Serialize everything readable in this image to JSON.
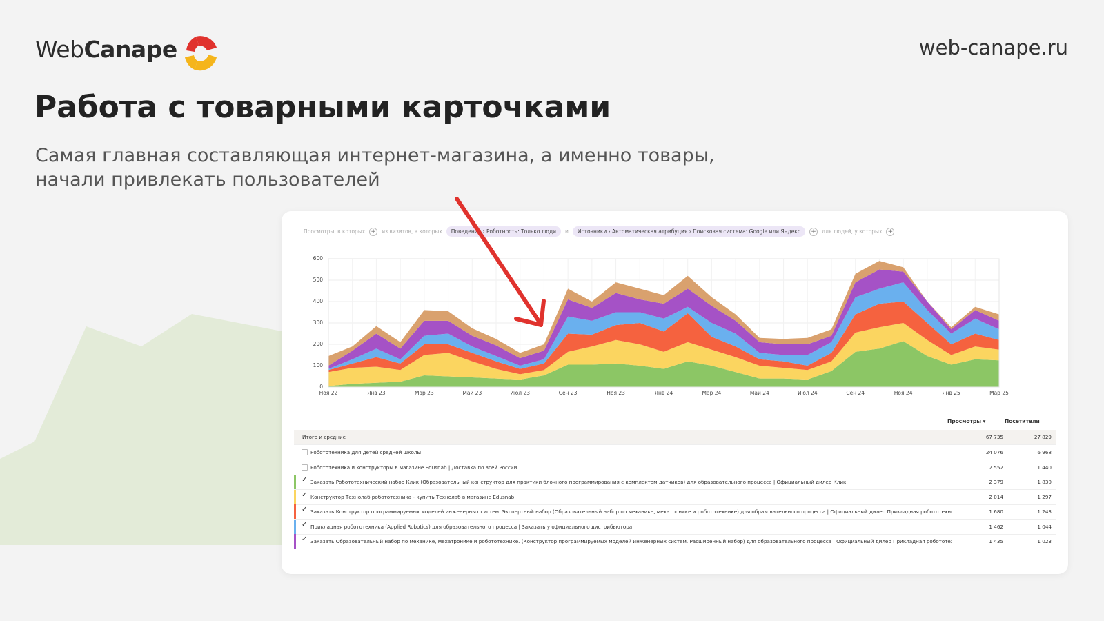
{
  "header": {
    "logo": {
      "light": "Web",
      "bold": "Canape"
    },
    "url": "web-canape.ru",
    "title": "Работа с товарными карточками",
    "subtitle": [
      "Самая главная составляющая интернет-магазина, а именно товары,",
      "начали привлекать пользователей"
    ]
  },
  "filters": {
    "views_prefix": "Просмотры, в которых",
    "visits_prefix": "из визитов, в которых",
    "chip_behavior": "Поведение › Роботность: Только люди",
    "and": "и",
    "chip_source": "Источники › Автоматическая атрибуция › Поисковая система: Google или Яндекс",
    "people_prefix": "для людей, у которых"
  },
  "chart_data": {
    "type": "stacked_area",
    "categories": [
      "Ноя 22",
      null,
      "Янв 23",
      null,
      "Мар 23",
      null,
      "Май 23",
      null,
      "Июл 23",
      null,
      "Сен 23",
      null,
      "Ноя 23",
      null,
      "Янв 24",
      null,
      "Мар 24",
      null,
      "Май 24",
      null,
      "Июл 24",
      null,
      "Сен 24",
      null,
      "Ноя 24",
      null,
      "Янв 25",
      null,
      "Мар 25"
    ],
    "ylim": [
      0,
      600
    ],
    "yticks": [
      0,
      100,
      200,
      300,
      400,
      500,
      600
    ],
    "grid": true,
    "series": [
      {
        "color": "#8cc665",
        "values": [
          5,
          15,
          20,
          25,
          55,
          50,
          45,
          40,
          35,
          55,
          105,
          105,
          110,
          100,
          85,
          120,
          100,
          70,
          40,
          40,
          35,
          75,
          165,
          180,
          215,
          145,
          105,
          130,
          125
        ]
      },
      {
        "color": "#fbd560",
        "values": [
          65,
          75,
          75,
          55,
          95,
          110,
          75,
          45,
          25,
          25,
          60,
          85,
          110,
          100,
          80,
          90,
          75,
          70,
          60,
          50,
          45,
          45,
          90,
          100,
          85,
          75,
          45,
          60,
          50
        ]
      },
      {
        "color": "#f5623f",
        "values": [
          10,
          20,
          45,
          30,
          50,
          40,
          40,
          35,
          25,
          30,
          85,
          55,
          70,
          100,
          95,
          135,
          60,
          50,
          30,
          30,
          20,
          40,
          85,
          110,
          100,
          80,
          50,
          60,
          45
        ]
      },
      {
        "color": "#6ab0ee",
        "values": [
          5,
          20,
          40,
          20,
          40,
          50,
          30,
          25,
          15,
          20,
          80,
          65,
          60,
          50,
          60,
          30,
          65,
          60,
          30,
          30,
          50,
          50,
          80,
          70,
          90,
          60,
          50,
          70,
          50
        ]
      },
      {
        "color": "#a552c6",
        "values": [
          15,
          40,
          70,
          50,
          70,
          60,
          50,
          50,
          35,
          40,
          80,
          60,
          90,
          60,
          70,
          85,
          80,
          60,
          50,
          50,
          50,
          30,
          70,
          90,
          50,
          40,
          20,
          40,
          40
        ]
      },
      {
        "color": "#d9a16e",
        "values": [
          45,
          20,
          35,
          30,
          50,
          45,
          35,
          30,
          25,
          30,
          50,
          30,
          50,
          50,
          40,
          60,
          40,
          30,
          20,
          25,
          30,
          30,
          40,
          40,
          20,
          0,
          10,
          15,
          30
        ]
      }
    ]
  },
  "table": {
    "columns": [
      "Просмотры",
      "Посетители"
    ],
    "total": {
      "label": "Итого и средние",
      "views": "67 735",
      "visitors": "27 829"
    },
    "rows": [
      {
        "label": "Робототехника для детей средней школы",
        "views": "24 076",
        "visitors": "6 968",
        "checked": false
      },
      {
        "label": "Робототехника и конструкторы в магазине Edusnab | Доставка по всей России",
        "views": "2 552",
        "visitors": "1 440",
        "checked": false
      },
      {
        "label": "Заказать Робототехнический набор Клик (Образовательный конструктор для практики блочного программирования с комплектом датчиков) для образовательного процесса | Официальный дилер Клик",
        "views": "2 379",
        "visitors": "1 830",
        "checked": true,
        "color": "#8cc665"
      },
      {
        "label": "Конструктор Технолаб робототехника - купить Технолаб в магазине Edusnab",
        "views": "2 014",
        "visitors": "1 297",
        "checked": true,
        "color": "#fbd560"
      },
      {
        "label": "Заказать Конструктор программируемых моделей инженерных систем. Экспертный набор (Образовательный набор по механике, мехатронике и робототехнике) для образовательного процесса | Официальный дилер Прикладная робототехника",
        "views": "1 680",
        "visitors": "1 243",
        "checked": true,
        "color": "#f5623f"
      },
      {
        "label": "Прикладная робототехника (Applied Robotics) для образовательного процесса | Заказать у официального дистрибьютора",
        "views": "1 462",
        "visitors": "1 044",
        "checked": true,
        "color": "#6ab0ee"
      },
      {
        "label": "Заказать Образовательный набор по механике, мехатронике и робототехнике. (Конструктор программируемых моделей инженерных систем. Расширенный набор) для образовательного процесса | Официальный дилер Прикладная робототехника",
        "views": "1 435",
        "visitors": "1 023",
        "checked": true,
        "color": "#a552c6"
      }
    ]
  }
}
